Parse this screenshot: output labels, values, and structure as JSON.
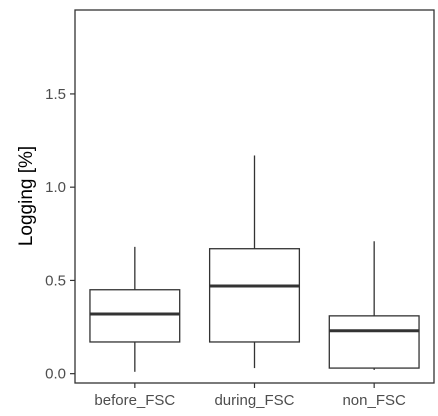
{
  "chart_data": {
    "type": "boxplot",
    "title": "",
    "xlabel": "",
    "ylabel": "Logging [%]",
    "ylim": [
      -0.05,
      1.95
    ],
    "yticks": [
      0.0,
      0.5,
      1.0,
      1.5
    ],
    "ytick_labels": [
      "0.0",
      "0.5",
      "1.0",
      "1.5"
    ],
    "grid": false,
    "legend": "none",
    "categories": [
      "before_FSC",
      "during_FSC",
      "non_FSC"
    ],
    "boxes": [
      {
        "category": "before_FSC",
        "whisker_low": 0.01,
        "q1": 0.17,
        "median": 0.32,
        "q3": 0.45,
        "whisker_high": 0.68
      },
      {
        "category": "during_FSC",
        "whisker_low": 0.03,
        "q1": 0.17,
        "median": 0.47,
        "q3": 0.67,
        "whisker_high": 1.17
      },
      {
        "category": "non_FSC",
        "whisker_low": 0.02,
        "q1": 0.03,
        "median": 0.23,
        "q3": 0.31,
        "whisker_high": 0.71
      }
    ],
    "colors": {
      "box_fill": "#ffffff",
      "line": "#333333",
      "median": "#333333",
      "panel_border": "#333333"
    }
  }
}
